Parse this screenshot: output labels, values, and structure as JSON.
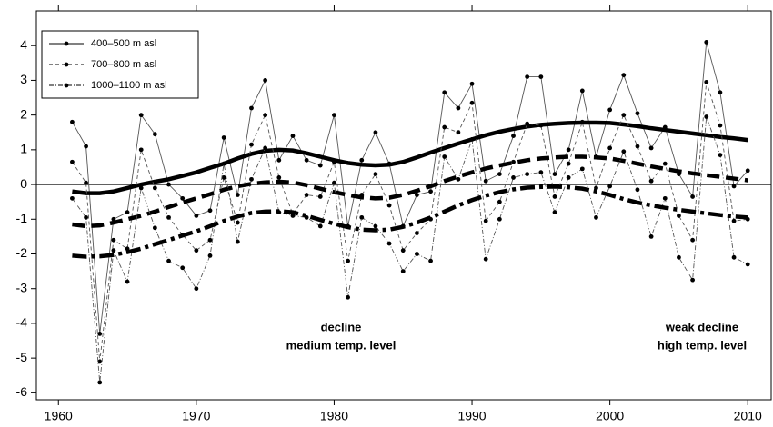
{
  "chart_data": {
    "type": "line",
    "x": [
      1961,
      1962,
      1963,
      1964,
      1965,
      1966,
      1967,
      1968,
      1969,
      1970,
      1971,
      1972,
      1973,
      1974,
      1975,
      1976,
      1977,
      1978,
      1979,
      1980,
      1981,
      1982,
      1983,
      1984,
      1985,
      1986,
      1987,
      1988,
      1989,
      1990,
      1991,
      1992,
      1993,
      1994,
      1995,
      1996,
      1997,
      1998,
      1999,
      2000,
      2001,
      2002,
      2003,
      2004,
      2005,
      2006,
      2007,
      2008,
      2009,
      2010
    ],
    "series": [
      {
        "name": "400–500 m asl",
        "color": "#555555",
        "line_style": "solid",
        "values": [
          1.8,
          1.1,
          -4.3,
          -1.0,
          -0.8,
          2.0,
          1.45,
          0.0,
          -0.4,
          -0.9,
          -0.75,
          1.35,
          -0.3,
          2.2,
          3.0,
          0.7,
          1.4,
          0.7,
          0.55,
          2.0,
          -1.2,
          0.7,
          1.5,
          0.6,
          -1.2,
          -0.3,
          -0.2,
          2.65,
          2.2,
          2.9,
          0.1,
          0.3,
          1.4,
          3.1,
          3.1,
          0.3,
          1.0,
          2.7,
          0.8,
          2.15,
          3.15,
          2.05,
          1.05,
          1.65,
          0.3,
          -0.35,
          4.1,
          2.65,
          -0.05,
          0.4
        ],
        "trend": [
          -0.2,
          -0.25,
          -0.25,
          -0.2,
          -0.1,
          0.0,
          0.08,
          0.15,
          0.25,
          0.35,
          0.48,
          0.6,
          0.75,
          0.88,
          0.97,
          1.0,
          0.98,
          0.9,
          0.8,
          0.7,
          0.62,
          0.57,
          0.55,
          0.57,
          0.65,
          0.78,
          0.92,
          1.05,
          1.18,
          1.3,
          1.42,
          1.52,
          1.6,
          1.67,
          1.72,
          1.75,
          1.77,
          1.78,
          1.78,
          1.77,
          1.73,
          1.68,
          1.62,
          1.57,
          1.52,
          1.47,
          1.42,
          1.37,
          1.33,
          1.28
        ]
      },
      {
        "name": "700–800 m asl",
        "color": "#555555",
        "line_style": "dashed",
        "values": [
          0.65,
          0.05,
          -5.1,
          -1.6,
          -1.85,
          1.0,
          -0.1,
          -0.95,
          -1.45,
          -1.9,
          -1.6,
          0.2,
          -1.1,
          1.15,
          2.0,
          0.2,
          -0.85,
          -0.3,
          -0.35,
          0.65,
          -2.2,
          -0.3,
          0.3,
          -0.6,
          -1.9,
          -1.4,
          -1.0,
          1.65,
          1.5,
          2.35,
          -1.05,
          -0.5,
          0.65,
          1.75,
          1.7,
          -0.35,
          0.6,
          1.8,
          -0.1,
          1.05,
          2.0,
          1.1,
          0.1,
          0.6,
          -0.9,
          -1.6,
          2.95,
          1.7,
          -1.05,
          -1.0
        ],
        "trend": [
          -1.15,
          -1.2,
          -1.18,
          -1.1,
          -1.0,
          -0.9,
          -0.78,
          -0.65,
          -0.52,
          -0.4,
          -0.28,
          -0.15,
          -0.05,
          0.02,
          0.06,
          0.08,
          0.06,
          -0.02,
          -0.12,
          -0.22,
          -0.3,
          -0.37,
          -0.4,
          -0.38,
          -0.3,
          -0.18,
          -0.05,
          0.1,
          0.23,
          0.35,
          0.46,
          0.55,
          0.63,
          0.7,
          0.75,
          0.78,
          0.8,
          0.8,
          0.78,
          0.75,
          0.68,
          0.6,
          0.52,
          0.45,
          0.38,
          0.32,
          0.27,
          0.22,
          0.17,
          0.12
        ]
      },
      {
        "name": "1000–1100 m asl",
        "color": "#555555",
        "line_style": "dashdot",
        "values": [
          -0.4,
          -0.95,
          -5.7,
          -1.9,
          -2.8,
          -0.1,
          -1.25,
          -2.2,
          -2.4,
          -3.0,
          -2.05,
          0.6,
          -1.65,
          0.15,
          1.05,
          -0.8,
          -0.9,
          -0.95,
          -1.2,
          0.05,
          -3.25,
          -0.95,
          -1.2,
          -1.7,
          -2.5,
          -2.0,
          -2.2,
          0.8,
          0.15,
          1.3,
          -2.15,
          -1.0,
          0.2,
          0.3,
          0.35,
          -0.8,
          0.2,
          0.45,
          -0.95,
          -0.05,
          0.95,
          -0.15,
          -1.5,
          -0.4,
          -2.1,
          -2.75,
          1.95,
          0.85,
          -2.1,
          -2.3
        ],
        "trend": [
          -2.05,
          -2.08,
          -2.07,
          -2.03,
          -1.95,
          -1.85,
          -1.72,
          -1.6,
          -1.47,
          -1.35,
          -1.2,
          -1.05,
          -0.92,
          -0.82,
          -0.78,
          -0.77,
          -0.8,
          -0.9,
          -1.02,
          -1.13,
          -1.23,
          -1.3,
          -1.32,
          -1.3,
          -1.22,
          -1.1,
          -0.95,
          -0.78,
          -0.6,
          -0.45,
          -0.32,
          -0.22,
          -0.14,
          -0.09,
          -0.07,
          -0.06,
          -0.08,
          -0.12,
          -0.2,
          -0.3,
          -0.42,
          -0.52,
          -0.6,
          -0.67,
          -0.73,
          -0.78,
          -0.83,
          -0.88,
          -0.92,
          -0.95
        ]
      }
    ],
    "xlim": [
      1958.4,
      2011.7
    ],
    "xticks": [
      1960,
      1970,
      1980,
      1990,
      2000,
      2010
    ],
    "ylim": [
      -6.2,
      5.0
    ],
    "yticks": [
      -6,
      -5,
      -4,
      -3,
      -2,
      -1,
      0,
      1,
      2,
      3,
      4
    ],
    "zero_line": true,
    "legend": "upper left",
    "annotations": [
      {
        "lines": [
          "decline",
          "medium temp. level"
        ]
      },
      {
        "lines": [
          "weak decline",
          "high temp. level"
        ]
      }
    ]
  }
}
